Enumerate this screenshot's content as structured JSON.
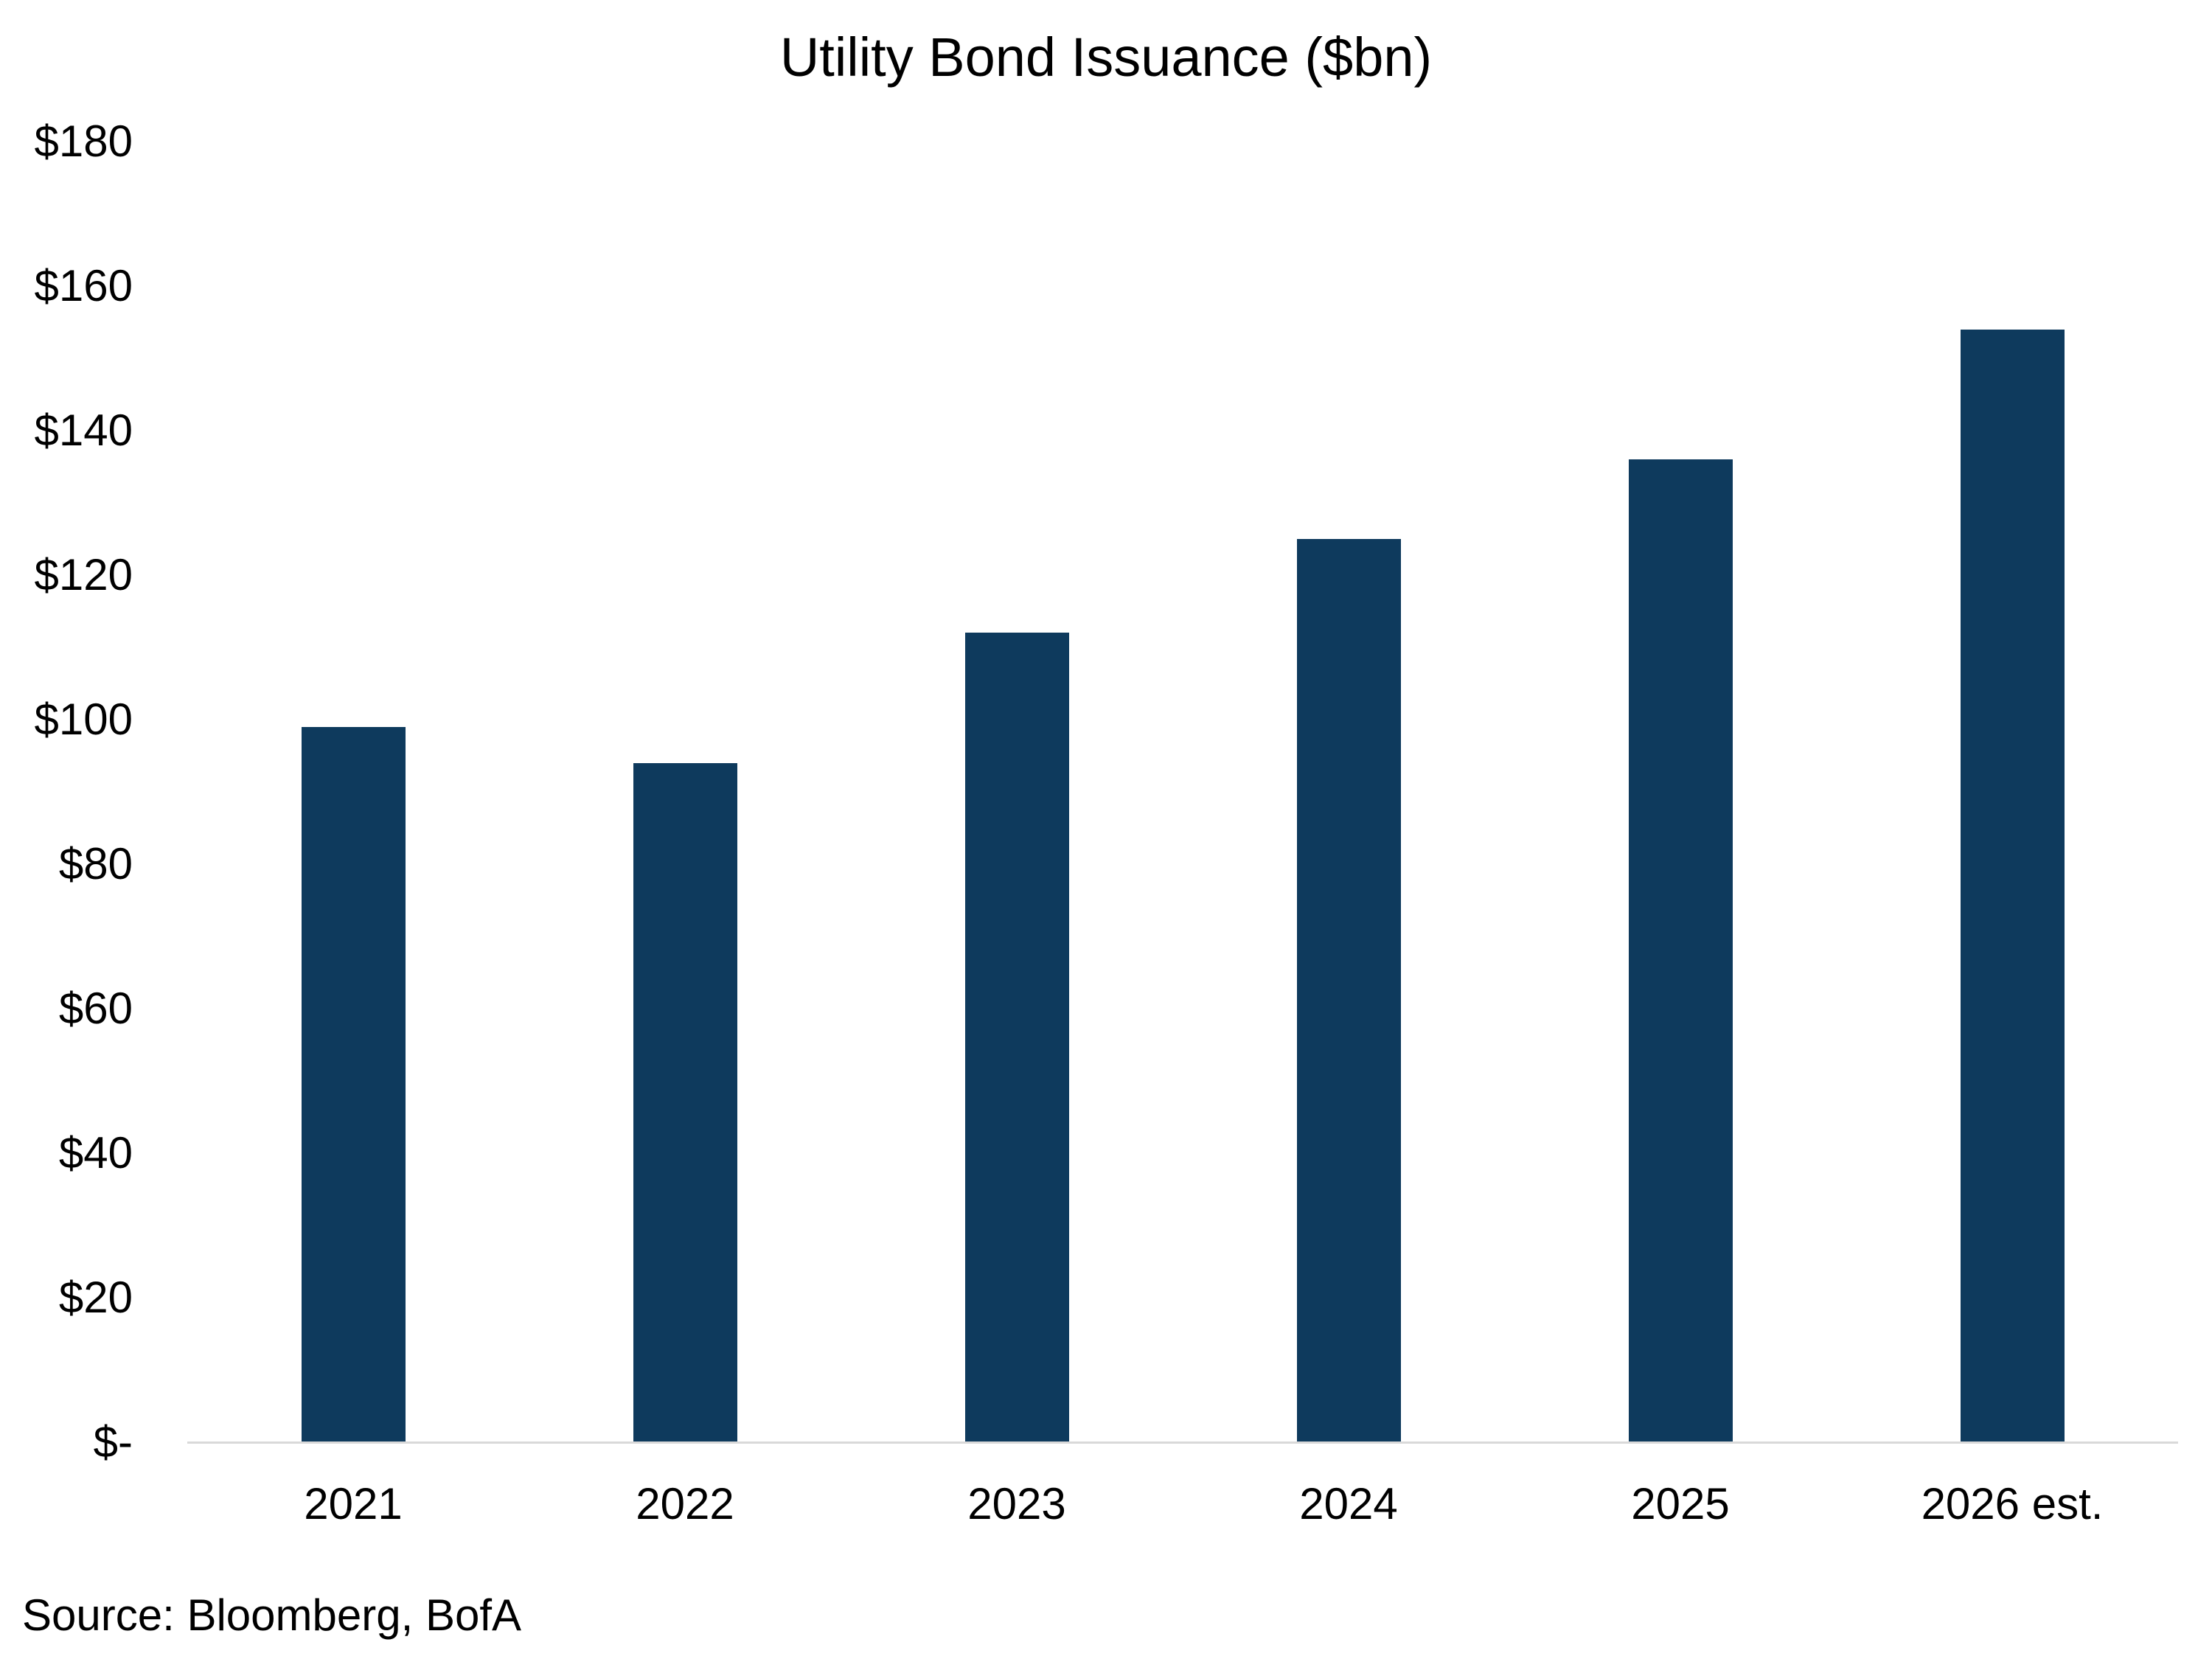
{
  "title": "Utility Bond Issuance ($bn)",
  "source_note": "Source: Bloomberg, BofA",
  "chart_data": {
    "type": "bar",
    "title": "Utility Bond Issuance ($bn)",
    "categories": [
      "2021",
      "2022",
      "2023",
      "2024",
      "2025",
      "2026 est."
    ],
    "values": [
      99,
      94,
      112,
      125,
      136,
      154
    ],
    "series_unit": "$bn",
    "xlabel": "",
    "ylabel": "",
    "ylim": [
      0,
      180
    ],
    "y_tick_step": 20,
    "y_tick_labels": [
      "$-",
      "$20",
      "$40",
      "$60",
      "$80",
      "$100",
      "$120",
      "$140",
      "$160",
      "$180"
    ],
    "grid": false,
    "legend": false,
    "bar_color": "#0e3a5d",
    "axis_line_color": "#d9d9d9",
    "text_color": "#000000",
    "source": "Source: Bloomberg, BofA"
  }
}
